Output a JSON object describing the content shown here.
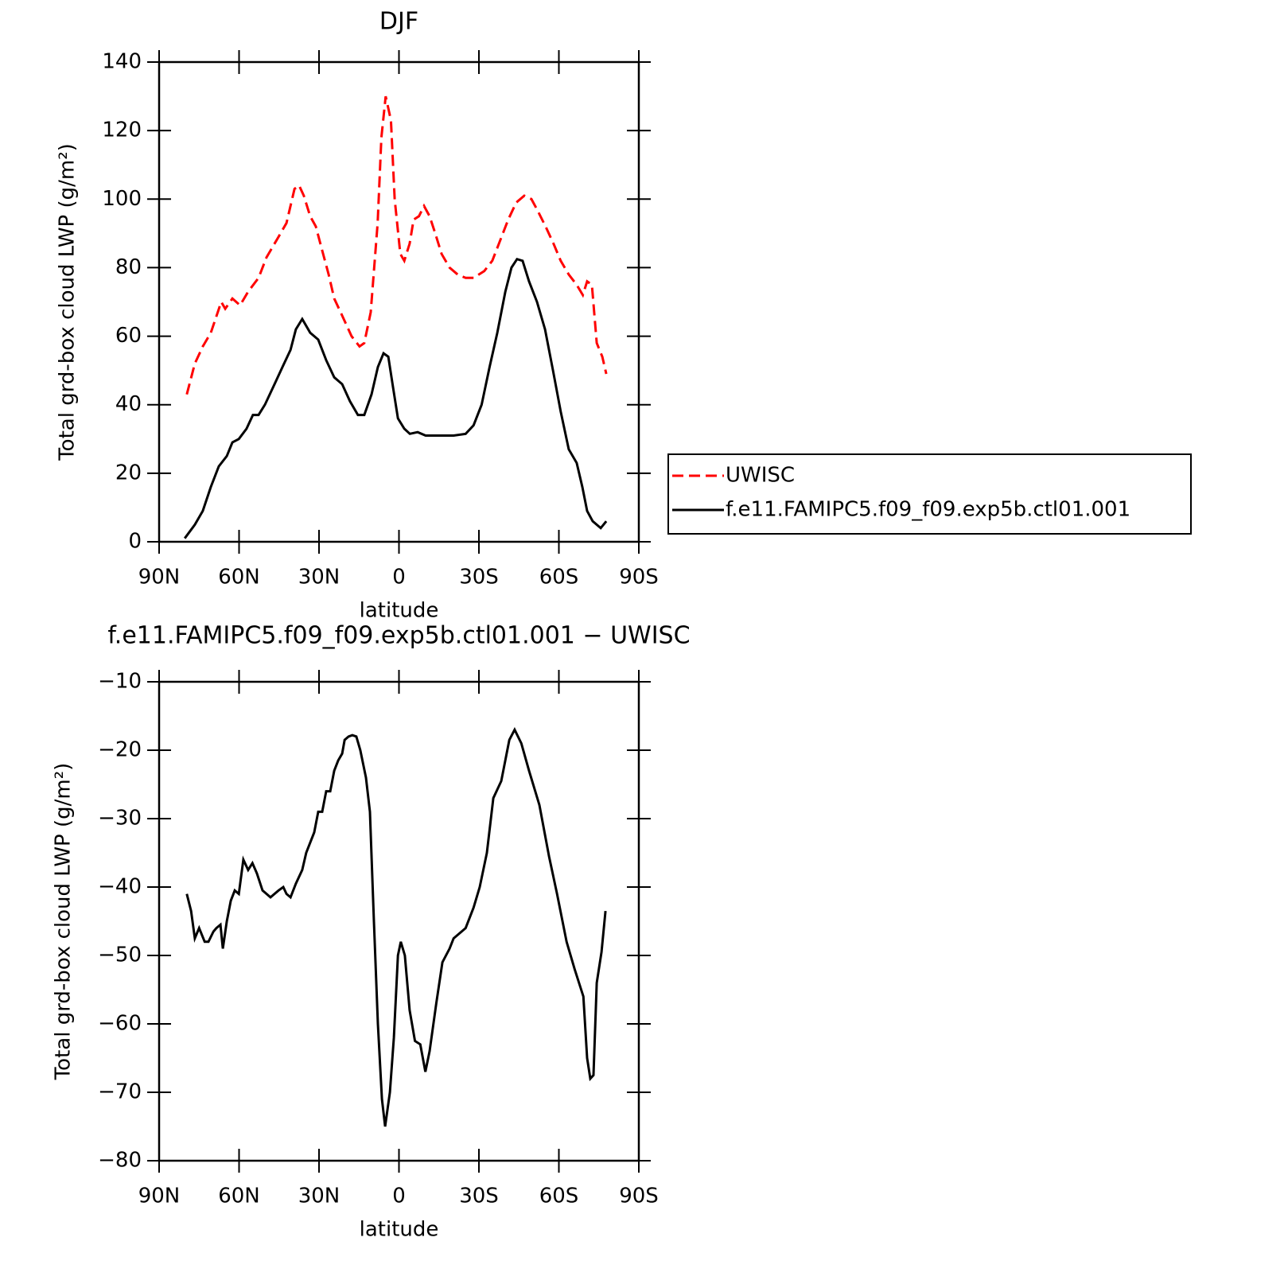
{
  "chart_data": [
    {
      "type": "line",
      "title": "DJF",
      "xlabel": "latitude",
      "ylabel": "Total grd-box cloud LWP (g/m²)",
      "xlim": [
        90,
        -90
      ],
      "xticks": [
        {
          "value": 90,
          "label": "90N"
        },
        {
          "value": 60,
          "label": "60N"
        },
        {
          "value": 30,
          "label": "30N"
        },
        0,
        {
          "value": -30,
          "label": "30S"
        },
        {
          "value": -60,
          "label": "60S"
        },
        {
          "value": -90,
          "label": "90S"
        }
      ],
      "ylim": [
        0,
        140
      ],
      "yticks": [
        0,
        20,
        40,
        60,
        80,
        100,
        120,
        140
      ],
      "legend": "right",
      "series": [
        {
          "name": "UWISC",
          "color": "#ff0000",
          "line_style": "dashed",
          "x": [
            79.6,
            76.6,
            73.6,
            70.6,
            66.7,
            65.2,
            62.5,
            59.6,
            56.6,
            52.7,
            49.7,
            45.2,
            42.2,
            39.2,
            37.5,
            35.7,
            33.3,
            31.2,
            28.8,
            26.4,
            24.3,
            21.3,
            17.8,
            14.8,
            13,
            10.6,
            8,
            6.6,
            5,
            3,
            1.6,
            -0.5,
            -2,
            -4,
            -5.5,
            -7.5,
            -9.4,
            -11.5,
            -13.6,
            -16,
            -19,
            -22,
            -25,
            -28,
            -32,
            -35,
            -38,
            -41,
            -44,
            -47,
            -49.7,
            -51.8,
            -55,
            -58,
            -60.7,
            -63.7,
            -66.7,
            -69,
            -70.6,
            -72.4,
            -74.2,
            -76.3,
            -77.8
          ],
          "values": [
            43,
            52,
            57,
            61,
            70,
            68,
            71,
            69,
            73,
            77,
            83,
            89,
            93,
            103,
            104,
            101,
            95,
            92,
            85,
            78,
            71,
            66,
            60,
            57,
            58,
            67,
            93,
            118,
            130,
            123,
            100,
            84,
            82,
            87,
            94,
            95,
            98,
            95,
            90,
            84,
            80,
            78,
            77,
            77,
            79,
            82,
            88,
            94,
            99,
            101,
            100,
            97,
            92,
            87,
            82,
            78,
            75,
            72,
            76,
            75,
            58,
            54,
            49
          ]
        },
        {
          "name": "f.e11.FAMIPC5.f09_f09.exp5b.ctl01.001",
          "color": "#000000",
          "line_style": "solid",
          "x": [
            80.4,
            76.6,
            73.6,
            70.6,
            67.6,
            64.6,
            62.5,
            60.1,
            57.2,
            54.8,
            52.7,
            50.3,
            46.7,
            43.7,
            40.7,
            38.7,
            36.3,
            33.3,
            30.3,
            27.3,
            24.3,
            21.3,
            18.4,
            15.4,
            13,
            10.3,
            7.9,
            5.8,
            4,
            2.2,
            0.4,
            -2,
            -4.1,
            -7,
            -10,
            -14.5,
            -20.5,
            -25,
            -28,
            -31,
            -34,
            -36.9,
            -39.9,
            -42.2,
            -44.3,
            -46.4,
            -48.8,
            -51.8,
            -54.8,
            -57.8,
            -60.7,
            -63.7,
            -66.7,
            -68.8,
            -70.6,
            -72.7,
            -75.7,
            -77.8
          ],
          "values": [
            1,
            5,
            9,
            16,
            22,
            25,
            29,
            30,
            33,
            37,
            37,
            40,
            46,
            51,
            56,
            62,
            65,
            61,
            59,
            53,
            48,
            46,
            41,
            37,
            37,
            43,
            51,
            55,
            54,
            45,
            36,
            33,
            31.5,
            32,
            31,
            31,
            31,
            31.5,
            34,
            40,
            51,
            61,
            73,
            80,
            82.5,
            82,
            76,
            70,
            62,
            50,
            38,
            27,
            23,
            16,
            9,
            6,
            4,
            6
          ]
        }
      ]
    },
    {
      "type": "line",
      "title": "f.e11.FAMIPC5.f09_f09.exp5b.ctl01.001 − UWISC",
      "xlabel": "latitude",
      "ylabel": "Total grd-box cloud LWP (g/m²)",
      "xlim": [
        90,
        -90
      ],
      "xticks": [
        {
          "value": 90,
          "label": "90N"
        },
        {
          "value": 60,
          "label": "60N"
        },
        {
          "value": 30,
          "label": "30N"
        },
        0,
        {
          "value": -30,
          "label": "30S"
        },
        {
          "value": -60,
          "label": "60S"
        },
        {
          "value": -90,
          "label": "90S"
        }
      ],
      "ylim": [
        -80,
        -10
      ],
      "yticks": [
        {
          "value": -80,
          "label": "−80"
        },
        {
          "value": -70,
          "label": "−70"
        },
        {
          "value": -60,
          "label": "−60"
        },
        {
          "value": -50,
          "label": "−50"
        },
        {
          "value": -40,
          "label": "−40"
        },
        {
          "value": -30,
          "label": "−30"
        },
        {
          "value": -20,
          "label": "−20"
        },
        {
          "value": -10,
          "label": "−10"
        }
      ],
      "series": [
        {
          "color": "#000000",
          "line_style": "solid",
          "x": [
            79.6,
            78,
            76.6,
            75,
            72.9,
            71.5,
            69.6,
            68.5,
            67,
            66.1,
            64.6,
            63.1,
            61.6,
            60.1,
            58.4,
            56.6,
            55,
            53.3,
            51.2,
            48.2,
            45.2,
            43.4,
            42.2,
            40.7,
            38.7,
            36.3,
            34.8,
            31.8,
            30.3,
            28.8,
            27.3,
            25.8,
            24.3,
            22.8,
            21.3,
            20.4,
            18.9,
            17.5,
            16,
            14.5,
            12.4,
            10.9,
            9.4,
            7.9,
            6.4,
            5.2,
            3.4,
            1.9,
            0.4,
            -0.7,
            -2.2,
            -4,
            -6,
            -8,
            -9.9,
            -11.5,
            -14,
            -16.3,
            -19,
            -20.5,
            -25,
            -28,
            -30.3,
            -33,
            -35.4,
            -38.4,
            -41.4,
            -43.4,
            -45.9,
            -48.8,
            -52.7,
            -56.3,
            -59.3,
            -62.9,
            -65.9,
            -69.2,
            -70.6,
            -71.8,
            -73,
            -74.2,
            -76,
            -77.5
          ],
          "values": [
            -41,
            -43.5,
            -47.5,
            -46,
            -48,
            -48,
            -46.5,
            -46,
            -45.5,
            -49,
            -45,
            -42,
            -40.5,
            -41,
            -36,
            -37.5,
            -36.5,
            -38,
            -40.5,
            -41.5,
            -40.5,
            -40,
            -41,
            -41.5,
            -39.5,
            -37.5,
            -35,
            -32,
            -29,
            -29,
            -26,
            -26,
            -23,
            -21.5,
            -20.5,
            -18.5,
            -18,
            -17.8,
            -18,
            -20,
            -24,
            -29,
            -45,
            -60,
            -71,
            -75,
            -70,
            -62,
            -50,
            -48,
            -50,
            -58,
            -62.5,
            -63,
            -67,
            -64,
            -57,
            -51,
            -49,
            -47.5,
            -46,
            -43,
            -40,
            -35,
            -27,
            -24.5,
            -18.5,
            -17,
            -19,
            -23,
            -28,
            -35.5,
            -41,
            -48,
            -52,
            -56,
            -65,
            -68,
            -67.5,
            -54,
            -49.5,
            -43.5
          ]
        }
      ]
    }
  ]
}
